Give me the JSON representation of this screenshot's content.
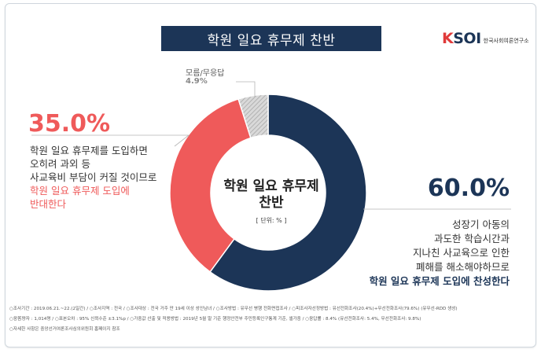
{
  "title": "학원 일요 휴무제 찬반",
  "logo": {
    "brand_k": "K",
    "brand_rest": "SOI",
    "subtitle": "한국사회여론연구소"
  },
  "center": {
    "title_line1": "학원 일요 휴무제",
    "title_line2": "찬반",
    "unit": "[ 단위: % ]"
  },
  "colors": {
    "support": "#1c3557",
    "oppose": "#ef5a5a",
    "unknown": "#c8c8c8"
  },
  "chart_data": {
    "type": "pie",
    "title": "학원 일요 휴무제 찬반",
    "unit": "%",
    "slices": [
      {
        "label": "찬성",
        "value": 60.0
      },
      {
        "label": "반대",
        "value": 35.0
      },
      {
        "label": "모름/무응답",
        "value": 4.9
      }
    ]
  },
  "labels": {
    "support_pct": "60.0%",
    "oppose_pct": "35.0%",
    "unknown_label": "모름/무응답",
    "unknown_pct": "4.9%"
  },
  "descriptions": {
    "oppose_lines": [
      "학원 일요 휴무제를 도입하면",
      "오히려 과외 등",
      "사교육비 부담이 커질 것이므로"
    ],
    "oppose_highlight": [
      "학원 일요 휴무제 도입에",
      "반대한다"
    ],
    "support_lines": [
      "성장기 아동의",
      "과도한 학습시간과",
      "지나친 사교육으로 인한",
      "폐해를 해소해야하므로"
    ],
    "support_highlight": "학원 일요 휴무제 도입에 찬성한다"
  },
  "footer": [
    "○조사기간 : 2019.06.21.~22.(2일간)  / ○조사지역 : 전국  / ○조사대상 : 전국 거주 만 19세 이상 성인남녀  / ○조사방법 : 유무선 병행 전화면접조사  / ○피조사자선정방법 : 유선전화조사(20.4%)+무선전화조사(79.6%) (유무선-RDD 생성)",
    "○응答량자 : 1,014명  / ○표본오차 : 95% 신뢰수준 ±3.1%p  / ○가중값 산출 및 적용방법 : 2019년 5월 말 기준 행정안전부 주민등록인구통계 기준, 셀가중  / ○응답률 : 8.4% (유선전화조사: 5.4%, 무선전화조사: 9.8%)",
    "○자세한 사항은 중앙선거여론조사심의위원회 홈페이지 참조"
  ]
}
